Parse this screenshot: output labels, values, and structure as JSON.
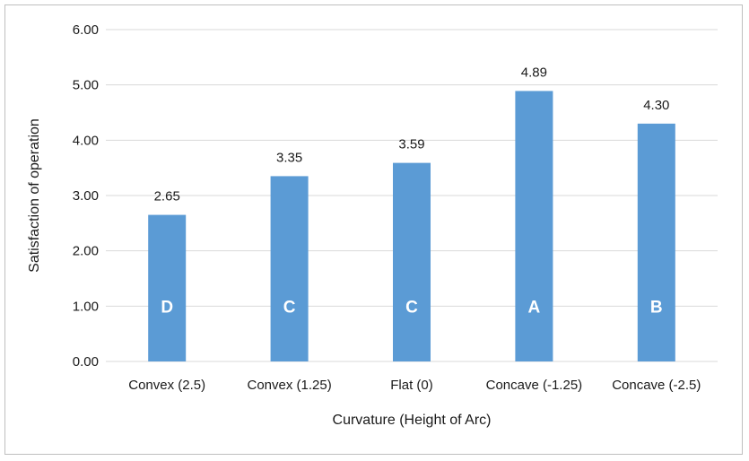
{
  "chart_data": {
    "type": "bar",
    "categories": [
      "Convex (2.5)",
      "Convex (1.25)",
      "Flat (0)",
      "Concave (-1.25)",
      "Concave (-2.5)"
    ],
    "values": [
      2.65,
      3.35,
      3.59,
      4.89,
      4.3
    ],
    "value_labels": [
      "2.65",
      "3.35",
      "3.59",
      "4.89",
      "4.30"
    ],
    "group_letters": [
      "D",
      "C",
      "C",
      "A",
      "B"
    ],
    "xlabel": "Curvature (Height of Arc)",
    "ylabel": "Satisfaction of operation",
    "ylim": [
      0,
      6
    ],
    "yticks": [
      "0.00",
      "1.00",
      "2.00",
      "3.00",
      "4.00",
      "5.00",
      "6.00"
    ],
    "grid": true,
    "bar_color": "#5b9bd5",
    "grid_color": "#d9d9d9"
  }
}
